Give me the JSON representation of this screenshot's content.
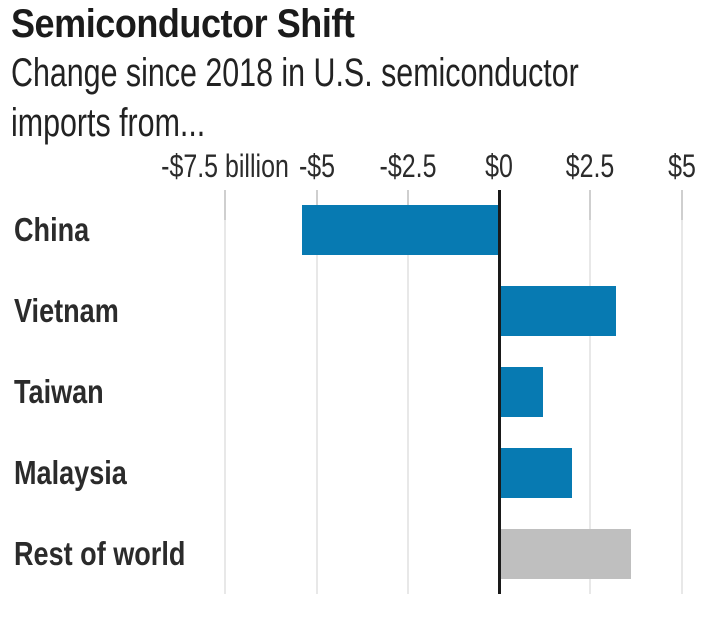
{
  "header": {
    "title": "Semiconductor Shift",
    "subtitle_line1": "Change since 2018 in U.S. semiconductor",
    "subtitle_line2": "imports from..."
  },
  "chart_data": {
    "type": "bar",
    "orientation": "horizontal",
    "title": "Semiconductor Shift",
    "subtitle": "Change since 2018 in U.S. semiconductor imports from...",
    "unit": "U.S. dollars, billions",
    "categories": [
      "China",
      "Vietnam",
      "Taiwan",
      "Malaysia",
      "Rest of world"
    ],
    "values": [
      -5.4,
      3.2,
      1.2,
      2.0,
      3.6
    ],
    "colors": [
      "#077ab2",
      "#077ab2",
      "#077ab2",
      "#077ab2",
      "#bfbfbf"
    ],
    "x_axis": {
      "ticks": [
        -7.5,
        -5,
        -2.5,
        0,
        2.5,
        5
      ],
      "tick_labels": [
        "-$7.5 billion",
        "-$5",
        "-$2.5",
        "$0",
        "$2.5",
        "$5"
      ],
      "xlim": [
        -8.6,
        6.1
      ]
    },
    "grid": true,
    "zero_line": true,
    "legend": "none"
  },
  "colors": {
    "bar_blue": "#077ab2",
    "bar_gray": "#bfbfbf",
    "gridline": "#e8e8e8",
    "tick": "#cfcfcf",
    "zero_line": "#1a1a1a",
    "text_dark": "#1b1b1b",
    "text_body": "#2b2b2b"
  }
}
